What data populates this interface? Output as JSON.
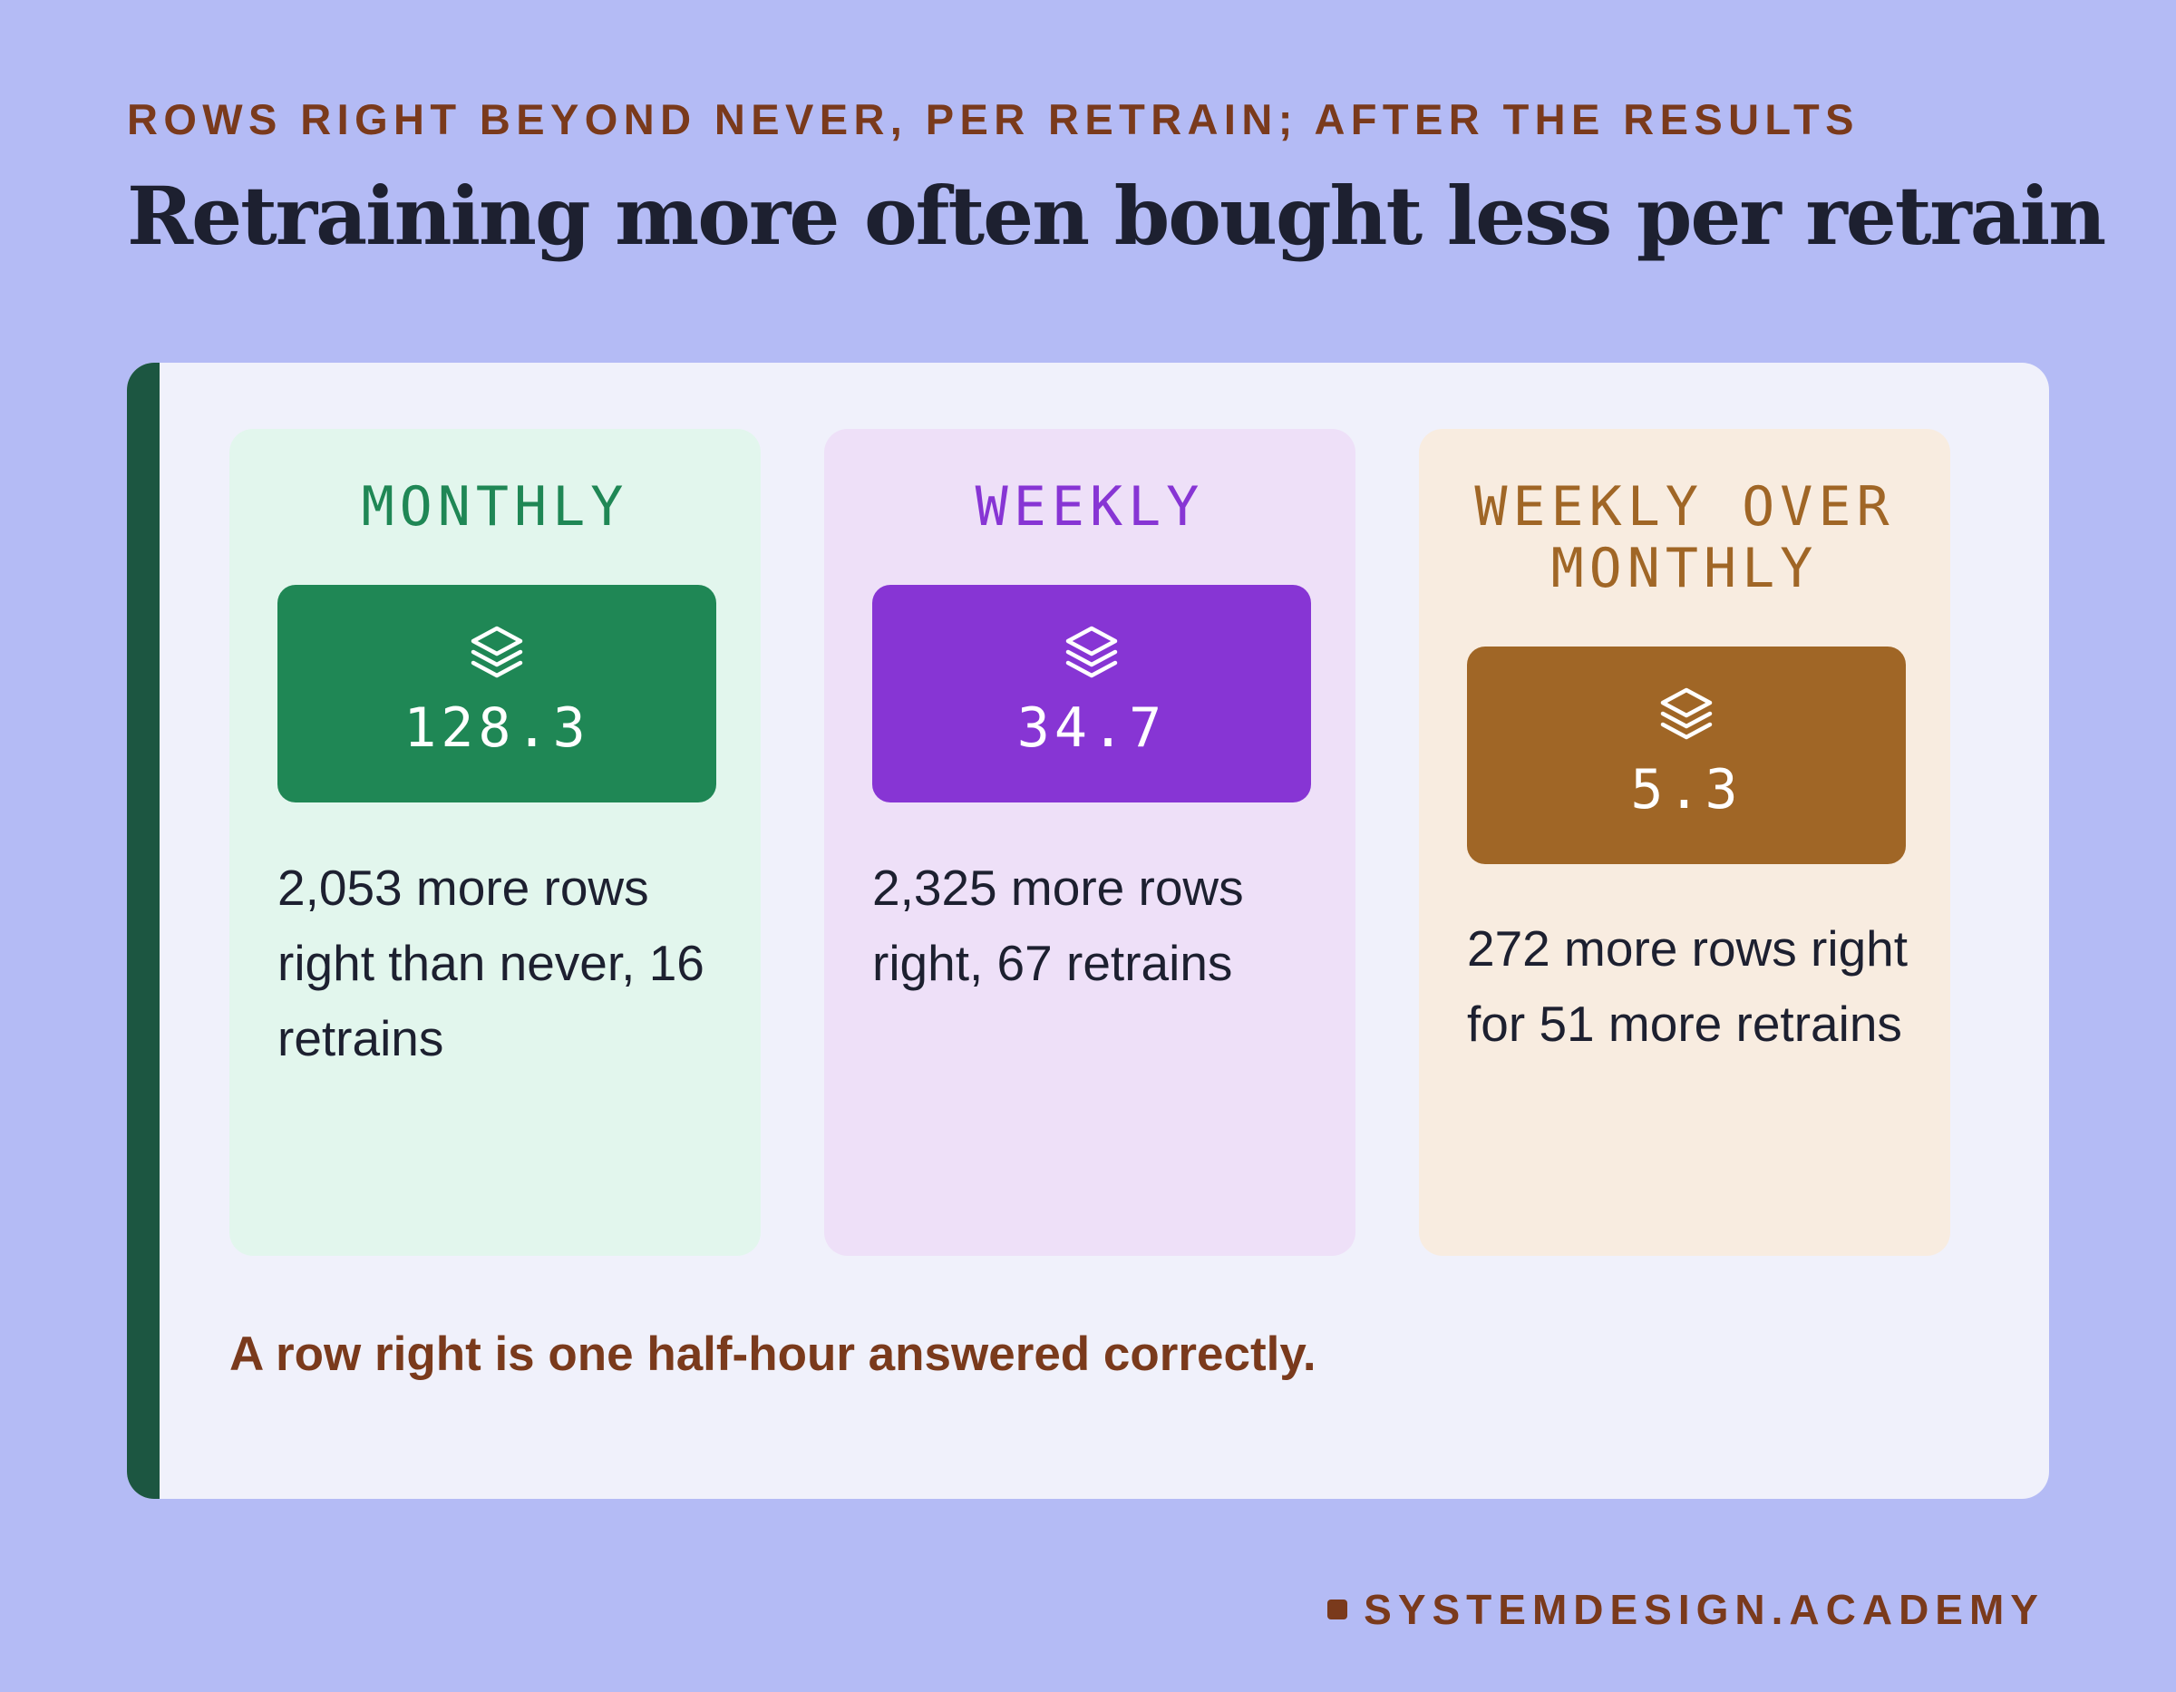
{
  "header": {
    "kicker": "ROWS RIGHT BEYOND NEVER, PER RETRAIN; AFTER THE RESULTS",
    "title": "Retraining more often bought less per retrain"
  },
  "cards": [
    {
      "label": "MONTHLY",
      "value": "128.3",
      "icon": "layers-icon",
      "description": "2,053 more rows right than never, 16 retrains",
      "accent": "#1f8755",
      "background": "#e2f6ed"
    },
    {
      "label": "WEEKLY",
      "value": "34.7",
      "icon": "layers-icon",
      "description": "2,325 more rows right, 67 retrains",
      "accent": "#8735d4",
      "background": "#eee0f8"
    },
    {
      "label": "WEEKLY OVER MONTHLY",
      "value": "5.3",
      "icon": "layers-icon",
      "description": "272 more rows right for 51 more retrains",
      "accent": "#a06626",
      "background": "#f8ece0"
    }
  ],
  "footnote": "A row right is one half-hour answered correctly.",
  "brand": "SYSTEMDESIGN.ACADEMY",
  "colors": {
    "page_background": "#b4bbf5",
    "panel_background": "#f0f1fb",
    "panel_bar": "#1c5641",
    "kicker_text": "#7a3a1c",
    "title_text": "#1d2030"
  }
}
